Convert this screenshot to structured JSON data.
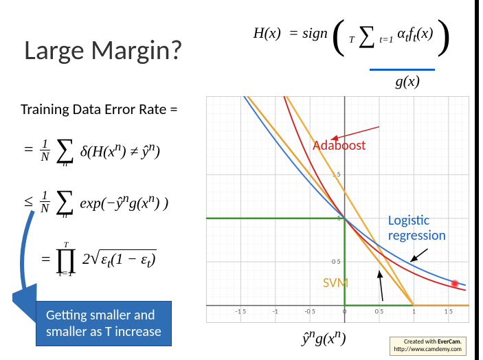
{
  "title": "Large Margin?",
  "formula_h": {
    "lhs": "H(x)",
    "eq": "= sign",
    "sum_top": "T",
    "sum_bot": "t=1",
    "inner": "α",
    "sub1": "t",
    "f": "f",
    "sub2": "t",
    "arg": "(x)"
  },
  "gx": "g(x)",
  "err_label": "Training Data Error Rate =",
  "eq1": {
    "lead": "=",
    "num": "1",
    "den": "N",
    "sum_sub": "n",
    "body1": "δ(H(x",
    "sup1": "n",
    "body2": ") ≠ ŷ",
    "sup2": "n",
    "body3": ")"
  },
  "eq2": {
    "lead": "≤",
    "num": "1",
    "den": "N",
    "sum_sub": "n",
    "body1": "exp(−ŷ",
    "sup1": "n",
    "body2": "g(x",
    "sup2": "n",
    "body3": ") )"
  },
  "eq3": {
    "lead": "=",
    "prod_top": "T",
    "prod_bot": "t=1",
    "two": "2",
    "rad1": "ε",
    "sub1": "t",
    "rad2": "(1 − ε",
    "sub2": "t",
    "rad3": ")"
  },
  "callout": {
    "line1": "Getting smaller and",
    "line2": "smaller as T increase"
  },
  "chart": {
    "type": "line",
    "xlim": [
      -2,
      1.8
    ],
    "ylim": [
      -0.2,
      2.4
    ],
    "xticks": [
      -1.5,
      -1,
      -0.5,
      0,
      0.5,
      1,
      1.5
    ],
    "yticks": [
      0.5,
      1,
      1.5
    ],
    "background": "#ffffff",
    "grid_minor": "#f0f0f0",
    "grid_major": "#d0d0d0",
    "axis_color": "#606060",
    "series": {
      "step_green": {
        "color": "#3c9030",
        "width": 2.5,
        "points": [
          [
            -2,
            1
          ],
          [
            0,
            1
          ],
          [
            0,
            0
          ],
          [
            1.8,
            0
          ]
        ]
      },
      "svm_orange": {
        "color": "#e8a030",
        "width": 2.5,
        "points": [
          [
            -2,
            3
          ],
          [
            1,
            0
          ],
          [
            1.8,
            0
          ]
        ]
      },
      "svm_orange2": {
        "color": "#f0b040",
        "width": 2.5,
        "points": [
          [
            -1.3,
            3
          ],
          [
            1,
            0
          ]
        ]
      },
      "adaboost_red": {
        "color": "#d02828",
        "width": 2,
        "type": "exp",
        "a": 1,
        "b": -1
      },
      "logistic_blue": {
        "color": "#3878d0",
        "width": 2,
        "type": "softplus"
      }
    },
    "labels": {
      "adaboost": {
        "text": "Adaboost",
        "color": "#d02020",
        "arrow_from": [
          0.6,
          2.05
        ],
        "arrow_to": [
          -0.2,
          1.9
        ]
      },
      "logistic": {
        "text": "Logistic regression",
        "color": "#1060d0",
        "arrow_from": [
          1.2,
          0.65
        ],
        "arrow_to": [
          0.95,
          0.5
        ]
      },
      "svm": {
        "text": "SVM",
        "color": "#e0a030",
        "arrow_from": [
          0.55,
          0.05
        ],
        "arrow_to": [
          0.5,
          0.4
        ]
      }
    },
    "tick_fontsize": 10,
    "tick_color": "#606060"
  },
  "axis_label": {
    "p1": "ŷ",
    "sup": "n",
    "p2": "g(x",
    "sup2": "n",
    "p3": ")"
  },
  "evercam": {
    "l1": "Created with EverCam.",
    "l2": "http://www.camdemy.com"
  }
}
